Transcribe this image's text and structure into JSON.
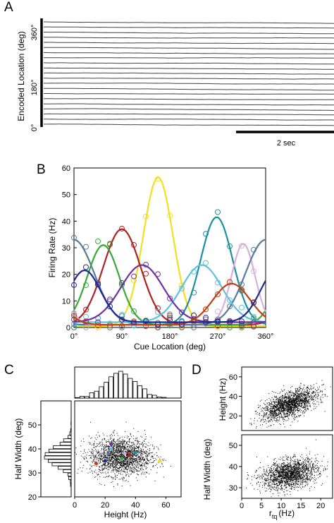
{
  "panels": {
    "a": "A",
    "b": "B",
    "c": "C",
    "d": "D"
  },
  "panel_a": {
    "ylabel": "Encoded Location (deg)",
    "yticks": [
      "0°",
      "180°",
      "360°"
    ],
    "scalebar_label": "2 sec",
    "n_traces": 21
  },
  "chart_data": [
    {
      "id": "B",
      "type": "line",
      "xlabel": "Cue Location (deg)",
      "ylabel": "Firing Rate (Hz)",
      "xlim": [
        0,
        360
      ],
      "ylim": [
        0,
        60
      ],
      "xticks": [
        "0°",
        "90°",
        "180°",
        "270°",
        "360°"
      ],
      "yticks": [
        "0",
        "10",
        "20",
        "30",
        "40",
        "50",
        "60"
      ],
      "series": [
        {
          "color": "#f0e020",
          "peak_x": 158,
          "peak_y": 56.5,
          "width_deg": 28,
          "baseline": 0.5
        },
        {
          "color": "#1a8fa0",
          "peak_x": 268,
          "peak_y": 41.5,
          "width_deg": 30,
          "baseline": 1.0
        },
        {
          "color": "#b02020",
          "peak_x": 90,
          "peak_y": 37.0,
          "width_deg": 35,
          "baseline": 1.0
        },
        {
          "color": "#38a838",
          "peak_x": 55,
          "peak_y": 31.0,
          "width_deg": 30,
          "baseline": 1.0
        },
        {
          "color": "#d8b0e0",
          "peak_x": 318,
          "peak_y": 31.5,
          "width_deg": 22,
          "baseline": 1.0
        },
        {
          "color": "#5a7a98",
          "peak_x": 360,
          "peak_y": 33.0,
          "width_deg": 38,
          "baseline": 1.0
        },
        {
          "color": "#60c0e0",
          "peak_x": 240,
          "peak_y": 23.5,
          "width_deg": 38,
          "baseline": 2.0
        },
        {
          "color": "#7030a0",
          "peak_x": 128,
          "peak_y": 23.5,
          "width_deg": 40,
          "baseline": 2.0
        },
        {
          "color": "#c04010",
          "peak_x": 296,
          "peak_y": 16.5,
          "width_deg": 35,
          "baseline": 1.0
        },
        {
          "color": "#202890",
          "peak_x": 20,
          "peak_y": 21.5,
          "width_deg": 30,
          "baseline": 2.0
        }
      ]
    },
    {
      "id": "C",
      "type": "scatter",
      "xlabel": "Height (Hz)",
      "ylabel": "Half Width (deg)",
      "xlim": [
        0,
        70
      ],
      "ylim": [
        20,
        60
      ],
      "xticks": [
        "0",
        "20",
        "40",
        "60"
      ],
      "yticks": [
        "20",
        "30",
        "40",
        "50"
      ],
      "cloud": {
        "mean_x": 30,
        "mean_y": 37,
        "sd_x": 10,
        "sd_y": 4,
        "n": 2000,
        "color": "#000000"
      },
      "highlighted": [
        {
          "x": 56,
          "y": 35,
          "color": "#f0e020"
        },
        {
          "x": 40,
          "y": 38.5,
          "color": "#1a8fa0"
        },
        {
          "x": 36,
          "y": 37.5,
          "color": "#b02020"
        },
        {
          "x": 31,
          "y": 36,
          "color": "#38a838"
        },
        {
          "x": 33,
          "y": 38,
          "color": "#d8b0e0"
        },
        {
          "x": 22,
          "y": 38,
          "color": "#5a7a98"
        },
        {
          "x": 24,
          "y": 40,
          "color": "#60c0e0"
        },
        {
          "x": 24,
          "y": 42,
          "color": "#7030a0"
        },
        {
          "x": 14,
          "y": 34,
          "color": "#c04010"
        },
        {
          "x": 20,
          "y": 35,
          "color": "#202890"
        }
      ]
    },
    {
      "id": "D-top",
      "type": "scatter",
      "ylabel": "Height (Hz)",
      "xlim": [
        0,
        23
      ],
      "ylim": [
        5,
        70
      ],
      "yticks": [
        "20",
        "40",
        "60"
      ],
      "cloud": {
        "mean_x": 12,
        "mean_y": 32,
        "sd_x": 3.5,
        "sd_y": 8,
        "corr": 0.6,
        "n": 1800,
        "color": "#000000"
      }
    },
    {
      "id": "D-bottom",
      "type": "scatter",
      "xlabel": "r",
      "xlabel_sub": "tq",
      "xlabel_unit": "(Hz)",
      "ylabel": "Half Width (deg)",
      "xlim": [
        0,
        23
      ],
      "ylim": [
        25,
        55
      ],
      "xticks": [
        "0",
        "5",
        "10",
        "15",
        "20"
      ],
      "yticks": [
        "30",
        "40",
        "50"
      ],
      "cloud": {
        "mean_x": 12,
        "mean_y": 36.5,
        "sd_x": 3.5,
        "sd_y": 3.5,
        "corr": 0.3,
        "n": 1800,
        "color": "#000000"
      }
    }
  ]
}
